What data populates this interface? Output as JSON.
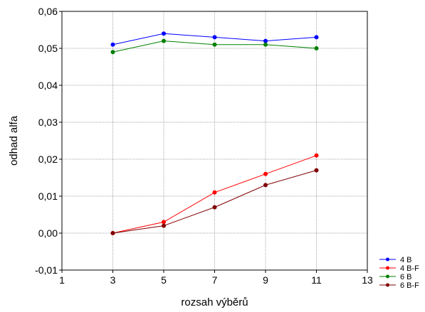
{
  "chart_data": {
    "type": "line",
    "xlabel": "rozsah výběrů",
    "ylabel": "odhad alfa",
    "xlim": [
      1,
      13
    ],
    "ylim": [
      -0.01,
      0.06
    ],
    "x_ticks": [
      1,
      3,
      5,
      7,
      9,
      11,
      13
    ],
    "x_tick_labels": [
      "1",
      "3",
      "5",
      "7",
      "9",
      "11",
      "13"
    ],
    "y_ticks": [
      -0.01,
      0,
      0.01,
      0.02,
      0.03,
      0.04,
      0.05,
      0.06
    ],
    "y_tick_labels": [
      "-0,01",
      "0,00",
      "0,01",
      "0,02",
      "0,03",
      "0,04",
      "0,05",
      "0,06"
    ],
    "grid": true,
    "legend_position": "bottom-right",
    "x": [
      3,
      5,
      7,
      9,
      11
    ],
    "series": [
      {
        "name": "4 B",
        "color": "#0000ff",
        "values": [
          0.051,
          0.054,
          0.053,
          0.052,
          0.053
        ]
      },
      {
        "name": "4 B-F",
        "color": "#ff0000",
        "values": [
          0.0,
          0.003,
          0.011,
          0.016,
          0.021
        ]
      },
      {
        "name": "6 B",
        "color": "#008000",
        "values": [
          0.049,
          0.052,
          0.051,
          0.051,
          0.05
        ]
      },
      {
        "name": "6 B-F",
        "color": "#800000",
        "values": [
          0.0,
          0.002,
          0.007,
          0.013,
          0.017
        ]
      }
    ]
  }
}
